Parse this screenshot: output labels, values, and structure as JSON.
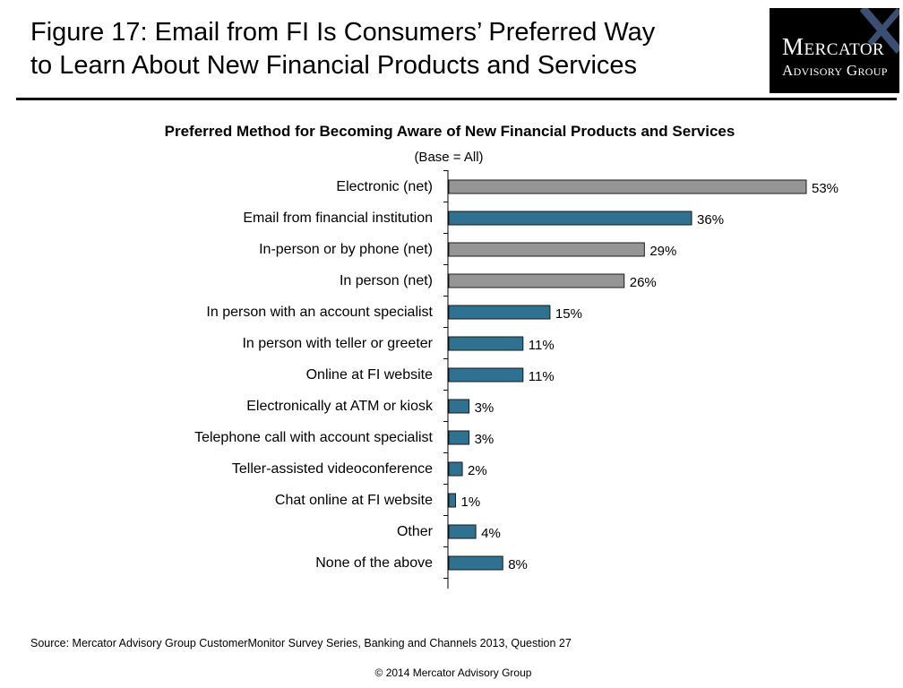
{
  "header": {
    "title_line1": "Figure 17: Email from FI Is Consumers’ Preferred Way",
    "title_line2": "to Learn About New Financial Products and Services"
  },
  "logo": {
    "line1": "Mercator",
    "line2": "Advisory Group"
  },
  "chart_data": {
    "type": "bar",
    "orientation": "horizontal",
    "title": "Preferred Method for Becoming Aware of New Financial Products and Services",
    "subtitle": "(Base = All)",
    "categories": [
      "Electronic (net)",
      "Email from financial institution",
      "In-person or by phone (net)",
      "In person (net)",
      "In person with an account specialist",
      "In person with teller or greeter",
      "Online at FI website",
      "Electronically at ATM or kiosk",
      "Telephone call with account specialist",
      "Teller-assisted videoconference",
      "Chat online at FI website",
      "Other",
      "None of the above"
    ],
    "values": [
      53,
      36,
      29,
      26,
      15,
      11,
      11,
      3,
      3,
      2,
      1,
      4,
      8
    ],
    "labels": [
      "53%",
      "36%",
      "29%",
      "26%",
      "15%",
      "11%",
      "11%",
      "3%",
      "3%",
      "2%",
      "1%",
      "4%",
      "8%"
    ],
    "bar_kind": [
      "net",
      "item",
      "net",
      "net",
      "item",
      "item",
      "item",
      "item",
      "item",
      "item",
      "item",
      "item",
      "item"
    ],
    "colors": {
      "net": "#959595",
      "item": "#2f7190"
    },
    "xlim": [
      0,
      53
    ],
    "grid": false,
    "legend": "none"
  },
  "footer": {
    "source": "Source: Mercator Advisory Group CustomerMonitor Survey Series, Banking and Channels 2013, Question 27",
    "copyright": "© 2014 Mercator Advisory Group"
  }
}
